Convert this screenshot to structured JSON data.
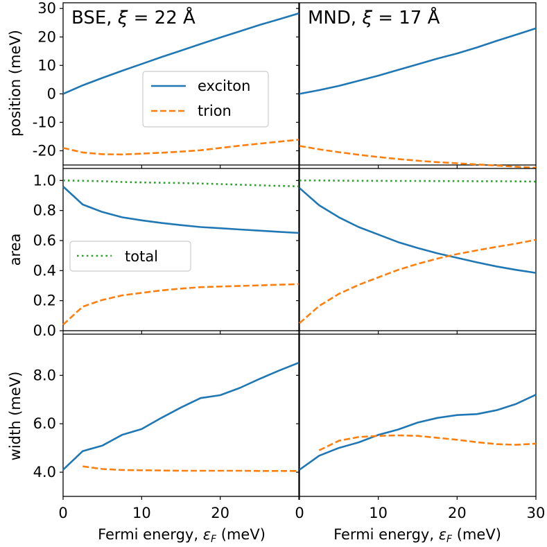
{
  "colors": {
    "exciton": "#1f77b4",
    "trion": "#ff7f0e",
    "total": "#2ca02c"
  },
  "xlabel": "Fermi energy, εF (meV)",
  "xlabel_parts": {
    "main": "Fermi energy, ",
    "symbol": "ε",
    "sub": "F",
    "unit": " (meV)"
  },
  "ylabels": {
    "position": "position (meV)",
    "area": "area",
    "width": "width (meV)"
  },
  "titles": {
    "left": {
      "prefix": "BSE, ",
      "xi": "ξ",
      "rest": " = 22 Å"
    },
    "right": {
      "prefix": "MND, ",
      "xi": "ξ",
      "rest": " = 17 Å"
    }
  },
  "legends": {
    "position": [
      {
        "label": "exciton",
        "series": "exciton"
      },
      {
        "label": "trion",
        "series": "trion"
      }
    ],
    "area": [
      {
        "label": "total",
        "series": "total"
      }
    ]
  },
  "x_ticks": {
    "left": [
      "0",
      "10",
      "20"
    ],
    "right": [
      "0",
      "10",
      "20",
      "30"
    ]
  },
  "y_ticks": {
    "position": [
      "30",
      "20",
      "10",
      "0",
      "-10",
      "-20"
    ],
    "area": [
      "1.0",
      "0.8",
      "0.6",
      "0.4",
      "0.2",
      "0.0"
    ],
    "width": [
      "8.0",
      "6.0",
      "4.0"
    ]
  },
  "chart_data": [
    {
      "type": "line",
      "panel": "position-BSE",
      "title": "BSE, ξ = 22 Å",
      "xlabel": "",
      "ylabel": "position (meV)",
      "xlim": [
        0,
        30
      ],
      "ylim": [
        -25,
        32
      ],
      "series": [
        {
          "name": "exciton",
          "x": [
            0,
            2.5,
            5,
            7.5,
            10,
            12.5,
            15,
            17.5,
            20,
            22.5,
            25,
            27.5,
            30
          ],
          "values": [
            0,
            3,
            5.6,
            8.1,
            10.5,
            12.9,
            15.2,
            17.5,
            19.8,
            22,
            24.2,
            26.2,
            28.3
          ]
        },
        {
          "name": "trion",
          "x": [
            0,
            2.5,
            5,
            7.5,
            10,
            12.5,
            15,
            17.5,
            20,
            22.5,
            25,
            27.5,
            30
          ],
          "values": [
            -19,
            -20.6,
            -21.2,
            -21.3,
            -21,
            -20.7,
            -20.3,
            -19.8,
            -19,
            -18.2,
            -17.5,
            -16.8,
            -16.1
          ]
        }
      ]
    },
    {
      "type": "line",
      "panel": "position-MND",
      "title": "MND, ξ = 17 Å",
      "xlabel": "",
      "ylabel": "",
      "xlim": [
        0,
        30
      ],
      "ylim": [
        -25,
        32
      ],
      "series": [
        {
          "name": "exciton",
          "x": [
            0,
            2.5,
            5,
            7.5,
            10,
            12.5,
            15,
            17.5,
            20,
            22.5,
            25,
            27.5,
            30
          ],
          "values": [
            0,
            1.3,
            2.8,
            4.6,
            6.4,
            8.4,
            10.4,
            12.4,
            14.2,
            16.3,
            18.6,
            20.8,
            23
          ]
        },
        {
          "name": "trion",
          "x": [
            0,
            2.5,
            5,
            7.5,
            10,
            12.5,
            15,
            17.5,
            20,
            22.5,
            25,
            27.5,
            30
          ],
          "values": [
            -18.3,
            -19.5,
            -20.5,
            -21.4,
            -22.2,
            -22.9,
            -23.5,
            -24,
            -24.4,
            -24.8,
            -25.2,
            -25.6,
            -26
          ]
        }
      ]
    },
    {
      "type": "line",
      "panel": "area-BSE",
      "title": "",
      "xlabel": "",
      "ylabel": "area",
      "xlim": [
        0,
        30
      ],
      "ylim": [
        0,
        1.08
      ],
      "series": [
        {
          "name": "exciton",
          "x": [
            0,
            2.5,
            5,
            7.5,
            10,
            12.5,
            15,
            17.5,
            20,
            22.5,
            25,
            27.5,
            30
          ],
          "values": [
            0.96,
            0.84,
            0.79,
            0.755,
            0.735,
            0.717,
            0.703,
            0.69,
            0.682,
            0.674,
            0.666,
            0.658,
            0.651
          ]
        },
        {
          "name": "trion",
          "x": [
            0,
            2.5,
            5,
            7.5,
            10,
            12.5,
            15,
            17.5,
            20,
            22.5,
            25,
            27.5,
            30
          ],
          "values": [
            0.04,
            0.16,
            0.205,
            0.235,
            0.252,
            0.268,
            0.28,
            0.29,
            0.294,
            0.298,
            0.302,
            0.306,
            0.31
          ]
        },
        {
          "name": "total",
          "x": [
            0,
            2.5,
            5,
            7.5,
            10,
            12.5,
            15,
            17.5,
            20,
            22.5,
            25,
            27.5,
            30
          ],
          "values": [
            1.0,
            0.998,
            0.995,
            0.99,
            0.987,
            0.985,
            0.983,
            0.98,
            0.976,
            0.972,
            0.968,
            0.964,
            0.961
          ]
        }
      ]
    },
    {
      "type": "line",
      "panel": "area-MND",
      "title": "",
      "xlabel": "",
      "ylabel": "",
      "xlim": [
        0,
        30
      ],
      "ylim": [
        0,
        1.08
      ],
      "series": [
        {
          "name": "exciton",
          "x": [
            0,
            2.5,
            5,
            7.5,
            10,
            12.5,
            15,
            17.5,
            20,
            22.5,
            25,
            27.5,
            30
          ],
          "values": [
            0.95,
            0.835,
            0.755,
            0.69,
            0.64,
            0.59,
            0.55,
            0.515,
            0.485,
            0.455,
            0.428,
            0.405,
            0.385
          ]
        },
        {
          "name": "trion",
          "x": [
            0,
            2.5,
            5,
            7.5,
            10,
            12.5,
            15,
            17.5,
            20,
            22.5,
            25,
            27.5,
            30
          ],
          "values": [
            0.05,
            0.165,
            0.245,
            0.305,
            0.355,
            0.405,
            0.445,
            0.48,
            0.51,
            0.535,
            0.558,
            0.58,
            0.605
          ]
        },
        {
          "name": "total",
          "x": [
            0,
            2.5,
            5,
            7.5,
            10,
            12.5,
            15,
            17.5,
            20,
            22.5,
            25,
            27.5,
            30
          ],
          "values": [
            1.0,
            1.0,
            0.999,
            0.998,
            0.998,
            0.997,
            0.997,
            0.996,
            0.996,
            0.995,
            0.995,
            0.994,
            0.993
          ]
        }
      ]
    },
    {
      "type": "line",
      "panel": "width-BSE",
      "title": "",
      "xlabel": "Fermi energy, εF (meV)",
      "ylabel": "width (meV)",
      "xlim": [
        0,
        30
      ],
      "ylim": [
        3,
        9.7
      ],
      "series": [
        {
          "name": "exciton",
          "x": [
            0,
            2.5,
            5,
            7.5,
            10,
            12.5,
            15,
            17.5,
            20,
            22.5,
            25,
            27.5,
            30
          ],
          "values": [
            4.1,
            4.87,
            5.1,
            5.54,
            5.78,
            6.24,
            6.67,
            7.06,
            7.18,
            7.48,
            7.85,
            8.2,
            8.52
          ]
        },
        {
          "name": "trion",
          "x": [
            2.5,
            5,
            7.5,
            10,
            12.5,
            15,
            17.5,
            20,
            22.5,
            25,
            27.5,
            30
          ],
          "values": [
            4.24,
            4.13,
            4.09,
            4.08,
            4.07,
            4.06,
            4.06,
            4.06,
            4.06,
            4.05,
            4.05,
            4.05
          ]
        }
      ]
    },
    {
      "type": "line",
      "panel": "width-MND",
      "title": "",
      "xlabel": "Fermi energy, εF (meV)",
      "ylabel": "",
      "xlim": [
        0,
        30
      ],
      "ylim": [
        3,
        9.7
      ],
      "series": [
        {
          "name": "exciton",
          "x": [
            0,
            2.5,
            5,
            7.5,
            10,
            12.5,
            15,
            17.5,
            20,
            22.5,
            25,
            27.5,
            30
          ],
          "values": [
            4.1,
            4.68,
            5.0,
            5.23,
            5.54,
            5.76,
            6.05,
            6.24,
            6.36,
            6.4,
            6.56,
            6.82,
            7.2
          ]
        },
        {
          "name": "trion",
          "x": [
            2.5,
            5,
            7.5,
            10,
            12.5,
            15,
            17.5,
            20,
            22.5,
            25,
            27.5,
            30
          ],
          "values": [
            4.9,
            5.3,
            5.45,
            5.5,
            5.52,
            5.5,
            5.42,
            5.34,
            5.24,
            5.16,
            5.13,
            5.18
          ]
        }
      ]
    }
  ]
}
